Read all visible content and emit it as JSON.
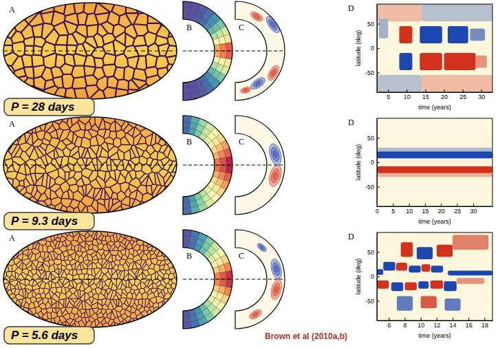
{
  "rows": [
    {
      "period": "P = 28 days",
      "panels": [
        "A",
        "B",
        "C",
        "D"
      ]
    },
    {
      "period": "P = 9.3 days",
      "panels": [
        "A",
        "B",
        "C",
        "D"
      ]
    },
    {
      "period": "P = 5.6 days",
      "panels": [
        "A",
        "B",
        "C",
        "D"
      ]
    }
  ],
  "credit": "Brown et al (2010a,b)",
  "chart_data": [
    {
      "type": "heatmap",
      "xlabel": "time (years)",
      "ylabel": "latitude (deg)",
      "xlim": [
        2,
        33
      ],
      "xticks": [
        5,
        10,
        15,
        20,
        25,
        30
      ],
      "ylim": [
        -90,
        90
      ],
      "yticks": [
        -50,
        0,
        50
      ],
      "cells": [
        {
          "x0": 2,
          "x1": 14,
          "y0": 55,
          "y1": 90,
          "value": 0.3
        },
        {
          "x0": 14,
          "x1": 33,
          "y0": 55,
          "y1": 90,
          "value": -0.3
        },
        {
          "x0": 2,
          "x1": 14,
          "y0": -90,
          "y1": -55,
          "value": -0.3
        },
        {
          "x0": 14,
          "x1": 33,
          "y0": -90,
          "y1": -55,
          "value": 0.3
        },
        {
          "x0": 2.5,
          "x1": 5,
          "y0": 20,
          "y1": 60,
          "value": -0.4
        },
        {
          "x0": 8,
          "x1": 11.5,
          "y0": 10,
          "y1": 45,
          "value": 1
        },
        {
          "x0": 13.5,
          "x1": 19.5,
          "y0": 10,
          "y1": 45,
          "value": -1
        },
        {
          "x0": 21,
          "x1": 26.5,
          "y0": 10,
          "y1": 45,
          "value": -1
        },
        {
          "x0": 27,
          "x1": 31,
          "y0": 15,
          "y1": 40,
          "value": -0.6
        },
        {
          "x0": 8,
          "x1": 11.5,
          "y0": -45,
          "y1": -10,
          "value": -1
        },
        {
          "x0": 13.5,
          "x1": 19.5,
          "y0": -45,
          "y1": -10,
          "value": 1
        },
        {
          "x0": 20,
          "x1": 28.5,
          "y0": -45,
          "y1": -10,
          "value": 1
        },
        {
          "x0": 28.5,
          "x1": 31.5,
          "y0": -40,
          "y1": -15,
          "value": 0.5
        }
      ]
    },
    {
      "type": "heatmap",
      "xlabel": "time (years)",
      "ylabel": "latitude (deg)",
      "xlim": [
        0,
        36
      ],
      "xticks": [
        0,
        5,
        10,
        15,
        20,
        25,
        30
      ],
      "ylim": [
        -90,
        90
      ],
      "yticks": [
        -50,
        0,
        50
      ],
      "cells": [
        {
          "x0": 0,
          "x1": 36,
          "y0": 22,
          "y1": 30,
          "value": -0.35
        },
        {
          "x0": 0,
          "x1": 36,
          "y0": -30,
          "y1": -22,
          "value": 0.35
        },
        {
          "x0": 0,
          "x1": 36,
          "y0": 8,
          "y1": 22,
          "value": -1
        },
        {
          "x0": 0,
          "x1": 36,
          "y0": -22,
          "y1": -8,
          "value": 1
        }
      ]
    },
    {
      "type": "heatmap",
      "xlabel": "time (years)",
      "ylabel": "latitude (deg)",
      "xlim": [
        4.5,
        19
      ],
      "xticks": [
        6,
        8,
        10,
        12,
        14,
        16,
        18
      ],
      "ylim": [
        -90,
        90
      ],
      "yticks": [
        -50,
        0,
        50
      ],
      "cells": [
        {
          "x0": 4.5,
          "x1": 5.3,
          "y0": 3,
          "y1": 15,
          "value": -1
        },
        {
          "x0": 5.3,
          "x1": 6.8,
          "y0": 12,
          "y1": 30,
          "value": -1
        },
        {
          "x0": 6.9,
          "x1": 8.3,
          "y0": 12,
          "y1": 28,
          "value": 1
        },
        {
          "x0": 8.5,
          "x1": 10,
          "y0": 8,
          "y1": 22,
          "value": -1
        },
        {
          "x0": 10.1,
          "x1": 11.2,
          "y0": 10,
          "y1": 25,
          "value": 1
        },
        {
          "x0": 11.3,
          "x1": 12.8,
          "y0": 8,
          "y1": 22,
          "value": -1
        },
        {
          "x0": 13.4,
          "x1": 19,
          "y0": 2,
          "y1": 12,
          "value": -1
        },
        {
          "x0": 7.5,
          "x1": 9,
          "y0": 40,
          "y1": 70,
          "value": 1
        },
        {
          "x0": 9.5,
          "x1": 11.5,
          "y0": 35,
          "y1": 60,
          "value": -1
        },
        {
          "x0": 12,
          "x1": 14,
          "y0": 40,
          "y1": 65,
          "value": 1
        },
        {
          "x0": 14,
          "x1": 18.5,
          "y0": 55,
          "y1": 85,
          "value": 0.6
        },
        {
          "x0": 4.5,
          "x1": 6,
          "y0": -25,
          "y1": -8,
          "value": 1
        },
        {
          "x0": 6.3,
          "x1": 7.8,
          "y0": -30,
          "y1": -12,
          "value": -1
        },
        {
          "x0": 8,
          "x1": 9.5,
          "y0": -28,
          "y1": -12,
          "value": 1
        },
        {
          "x0": 9.7,
          "x1": 11,
          "y0": -25,
          "y1": -10,
          "value": -1
        },
        {
          "x0": 11.2,
          "x1": 12.8,
          "y0": -25,
          "y1": -8,
          "value": 1
        },
        {
          "x0": 12.9,
          "x1": 14.5,
          "y0": -30,
          "y1": -10,
          "value": -1
        },
        {
          "x0": 14.5,
          "x1": 18,
          "y0": -15,
          "y1": -3,
          "value": 0.5
        },
        {
          "x0": 7,
          "x1": 9,
          "y0": -70,
          "y1": -40,
          "value": -0.7
        },
        {
          "x0": 10,
          "x1": 12,
          "y0": -65,
          "y1": -40,
          "value": 0.8
        },
        {
          "x0": 13,
          "x1": 15,
          "y0": -70,
          "y1": -45,
          "value": -0.7
        }
      ]
    }
  ]
}
